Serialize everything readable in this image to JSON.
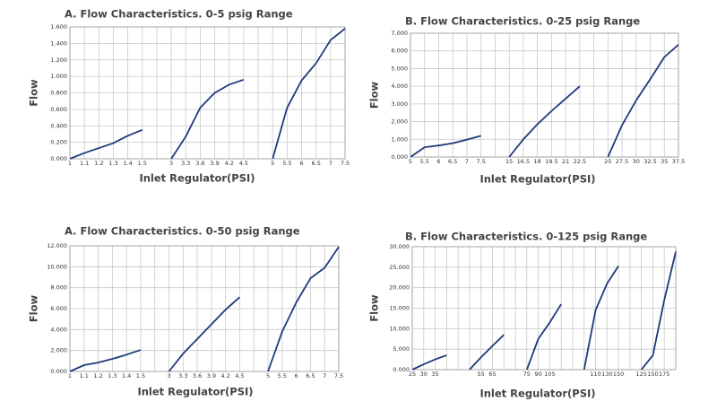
{
  "chart_data": [
    {
      "type": "line",
      "title": "A. Flow Characteristics. 0-5 psig Range",
      "x_label": "Inlet Regulator(PSI)",
      "y_label": "Flow",
      "color": "#1f3a7a",
      "grid": true,
      "categories": [
        1,
        1.1,
        1.2,
        1.3,
        1.4,
        1.5,
        null,
        3,
        3.3,
        3.6,
        3.9,
        4.2,
        4.5,
        null,
        5,
        5.5,
        6,
        6.5,
        7,
        7.5
      ],
      "values": [
        0,
        0.07,
        0.13,
        0.19,
        0.28,
        0.35,
        null,
        0,
        0.27,
        0.62,
        0.8,
        0.9,
        0.96,
        null,
        0,
        0.62,
        0.95,
        1.16,
        1.44,
        1.58
      ],
      "ylim": [
        0,
        1.6
      ],
      "yticks": [
        {
          "value": 0,
          "label": "0.000"
        },
        {
          "value": 0.2,
          "label": "0.200"
        },
        {
          "value": 0.4,
          "label": "0.400"
        },
        {
          "value": 0.6,
          "label": "0.600"
        },
        {
          "value": 0.8,
          "label": "0.800"
        },
        {
          "value": 1.0,
          "label": "1.000"
        },
        {
          "value": 1.2,
          "label": "1.200"
        },
        {
          "value": 1.4,
          "label": "1.400"
        },
        {
          "value": 1.6,
          "label": "1.600"
        }
      ]
    },
    {
      "type": "line",
      "title": "B. Flow Characteristics. 0-25 psig Range",
      "x_label": "Inlet Regulator(PSI)",
      "y_label": "Flow",
      "color": "#1f3a7a",
      "grid": true,
      "categories": [
        5,
        5.5,
        6,
        6.5,
        7,
        7.5,
        null,
        15,
        16.5,
        18,
        19.5,
        21,
        22.5,
        null,
        25,
        27.5,
        30,
        32.5,
        35,
        37.5
      ],
      "values": [
        0,
        550,
        650,
        780,
        980,
        1200,
        null,
        0,
        1000,
        1850,
        2600,
        3300,
        4000,
        null,
        0,
        1800,
        3200,
        4400,
        5650,
        6350
      ],
      "ylim": [
        0,
        7000
      ],
      "yticks": [
        {
          "value": 0,
          "label": "0.000"
        },
        {
          "value": 1000,
          "label": "1.000"
        },
        {
          "value": 2000,
          "label": "2.000"
        },
        {
          "value": 3000,
          "label": "3.000"
        },
        {
          "value": 4000,
          "label": "4.000"
        },
        {
          "value": 5000,
          "label": "5.000"
        },
        {
          "value": 6000,
          "label": "6.000"
        },
        {
          "value": 7000,
          "label": "7.000"
        }
      ]
    },
    {
      "type": "line",
      "title": "A. Flow Characteristics. 0-50 psig Range",
      "x_label": "Inlet Regulator(PSI)",
      "y_label": "Flow",
      "color": "#1f3a7a",
      "grid": true,
      "categories": [
        1,
        1.1,
        1.2,
        1.3,
        1.4,
        1.5,
        null,
        3,
        3.3,
        3.6,
        3.9,
        4.2,
        4.5,
        null,
        5,
        5.5,
        6,
        6.5,
        7,
        7.5
      ],
      "values": [
        0,
        600,
        850,
        1200,
        1600,
        2050,
        null,
        0,
        1700,
        3100,
        4500,
        5900,
        7100,
        null,
        0,
        3800,
        6600,
        8900,
        9900,
        11900
      ],
      "ylim": [
        0,
        12000
      ],
      "yticks": [
        {
          "value": 0,
          "label": "0.000"
        },
        {
          "value": 2000,
          "label": "2.000"
        },
        {
          "value": 4000,
          "label": "4.000"
        },
        {
          "value": 6000,
          "label": "6.000"
        },
        {
          "value": 8000,
          "label": "8.000"
        },
        {
          "value": 10000,
          "label": "10.000"
        },
        {
          "value": 12000,
          "label": "12.000"
        }
      ]
    },
    {
      "type": "line",
      "title": "B. Flow Characteristics. 0-125 psig Range",
      "x_label": "Inlet Regulator(PSI)",
      "y_label": "Flow",
      "color": "#1f3a7a",
      "grid": true,
      "categories": [
        25,
        30,
        35,
        null,
        null,
        null,
        55,
        65,
        null,
        null,
        75,
        90,
        105,
        null,
        null,
        null,
        110,
        130,
        150,
        null,
        125,
        150,
        175,
        null
      ],
      "values": [
        0,
        1300,
        2500,
        3500,
        null,
        0,
        3000,
        5800,
        8500,
        null,
        0,
        7500,
        11500,
        16000,
        null,
        0,
        14500,
        21000,
        25300,
        null,
        0,
        3500,
        17000,
        28800
      ],
      "ylim": [
        0,
        30000
      ],
      "yticks": [
        {
          "value": 0,
          "label": "0.000"
        },
        {
          "value": 5000,
          "label": "5.000"
        },
        {
          "value": 10000,
          "label": "10.000"
        },
        {
          "value": 15000,
          "label": "15.000"
        },
        {
          "value": 20000,
          "label": "20.000"
        },
        {
          "value": 25000,
          "label": "25.000"
        },
        {
          "value": 30000,
          "label": "30.000"
        }
      ]
    }
  ]
}
